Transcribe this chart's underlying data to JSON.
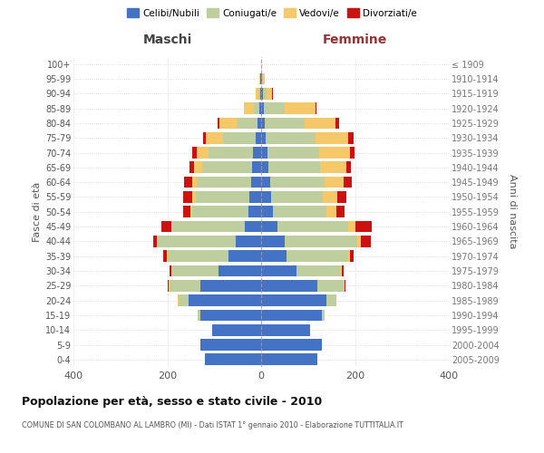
{
  "age_groups": [
    "0-4",
    "5-9",
    "10-14",
    "15-19",
    "20-24",
    "25-29",
    "30-34",
    "35-39",
    "40-44",
    "45-49",
    "50-54",
    "55-59",
    "60-64",
    "65-69",
    "70-74",
    "75-79",
    "80-84",
    "85-89",
    "90-94",
    "95-99",
    "100+"
  ],
  "birth_years": [
    "2005-2009",
    "2000-2004",
    "1995-1999",
    "1990-1994",
    "1985-1989",
    "1980-1984",
    "1975-1979",
    "1970-1974",
    "1965-1969",
    "1960-1964",
    "1955-1959",
    "1950-1954",
    "1945-1949",
    "1940-1944",
    "1935-1939",
    "1930-1934",
    "1925-1929",
    "1920-1924",
    "1915-1919",
    "1910-1914",
    "≤ 1909"
  ],
  "colors": {
    "celibi": "#4472C4",
    "coniugati": "#BFCE9E",
    "vedovi": "#F5C96A",
    "divorziati": "#CC1111",
    "background": "#FFFFFF",
    "grid": "#CCCCCC"
  },
  "maschi": {
    "celibi": [
      120,
      130,
      105,
      130,
      155,
      130,
      90,
      70,
      55,
      35,
      28,
      25,
      22,
      20,
      18,
      12,
      8,
      4,
      2,
      1,
      0
    ],
    "coniugati": [
      0,
      0,
      0,
      5,
      20,
      65,
      100,
      130,
      165,
      155,
      118,
      115,
      115,
      105,
      95,
      70,
      45,
      12,
      4,
      1,
      0
    ],
    "vedovi": [
      0,
      0,
      0,
      0,
      2,
      2,
      1,
      1,
      2,
      2,
      4,
      6,
      10,
      18,
      25,
      35,
      35,
      20,
      5,
      2,
      0
    ],
    "divorziati": [
      0,
      0,
      0,
      0,
      0,
      2,
      5,
      8,
      8,
      20,
      16,
      20,
      18,
      10,
      8,
      6,
      5,
      0,
      0,
      0,
      0
    ]
  },
  "femmine": {
    "celibi": [
      120,
      130,
      105,
      130,
      140,
      120,
      75,
      55,
      50,
      35,
      25,
      22,
      20,
      16,
      14,
      10,
      8,
      5,
      4,
      2,
      0
    ],
    "coniugati": [
      0,
      0,
      0,
      5,
      20,
      55,
      95,
      130,
      155,
      150,
      115,
      110,
      115,
      110,
      110,
      105,
      85,
      45,
      8,
      2,
      0
    ],
    "vedovi": [
      0,
      0,
      0,
      0,
      1,
      2,
      2,
      4,
      8,
      15,
      20,
      30,
      40,
      55,
      65,
      70,
      65,
      65,
      12,
      4,
      0
    ],
    "divorziati": [
      0,
      0,
      0,
      0,
      0,
      2,
      4,
      8,
      20,
      35,
      18,
      20,
      18,
      10,
      10,
      12,
      8,
      2,
      1,
      0,
      0
    ]
  },
  "title": "Popolazione per età, sesso e stato civile - 2010",
  "subtitle": "COMUNE DI SAN COLOMBANO AL LAMBRO (MI) - Dati ISTAT 1° gennaio 2010 - Elaborazione TUTTITALIA.IT",
  "header_left": "Maschi",
  "header_right": "Femmine",
  "ylabel_left": "Fasce di età",
  "ylabel_right": "Anni di nascita",
  "xlim": 400,
  "legend_labels": [
    "Celibi/Nubili",
    "Coniugati/e",
    "Vedovi/e",
    "Divorziati/e"
  ]
}
